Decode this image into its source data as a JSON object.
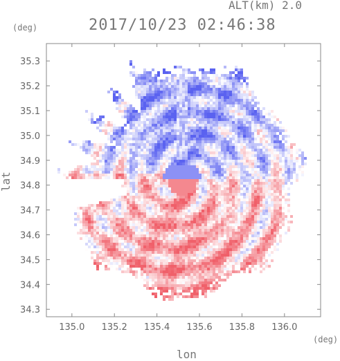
{
  "header": {
    "altitude": "ALT(km) 2.0",
    "title": "2017/10/23 02:46:38"
  },
  "axes": {
    "x_unit": "(deg)",
    "y_unit": "(deg)",
    "x_label": "lon",
    "y_label": "lat"
  },
  "colors": {
    "negative": "#5a62f0",
    "neutral": "#ffffff",
    "positive": "#f0606a",
    "axis": "#888888"
  },
  "chart_data": {
    "type": "heatmap",
    "title": "2017/10/23 02:46:38",
    "xlabel": "lon",
    "ylabel": "lat",
    "xlim": [
      134.88,
      136.17
    ],
    "ylim": [
      34.27,
      35.37
    ],
    "x_ticks": [
      135.0,
      135.2,
      135.4,
      135.6,
      135.8,
      136.0
    ],
    "x_tick_labels": [
      "135.0",
      "135.2",
      "135.4",
      "135.6",
      "135.8",
      "136.0"
    ],
    "y_ticks": [
      34.3,
      34.4,
      34.5,
      34.6,
      34.7,
      34.8,
      34.9,
      35.0,
      35.1,
      35.2,
      35.3
    ],
    "y_tick_labels": [
      "34.3",
      "34.4",
      "34.5",
      "34.6",
      "34.7",
      "34.8",
      "34.9",
      "35.0",
      "35.1",
      "35.2",
      "35.3"
    ],
    "radar_center": [
      135.52,
      34.82
    ],
    "radar_range_deg": 0.56,
    "colorscale": "diverging blue-white-red",
    "grid": false,
    "legend": "none"
  }
}
